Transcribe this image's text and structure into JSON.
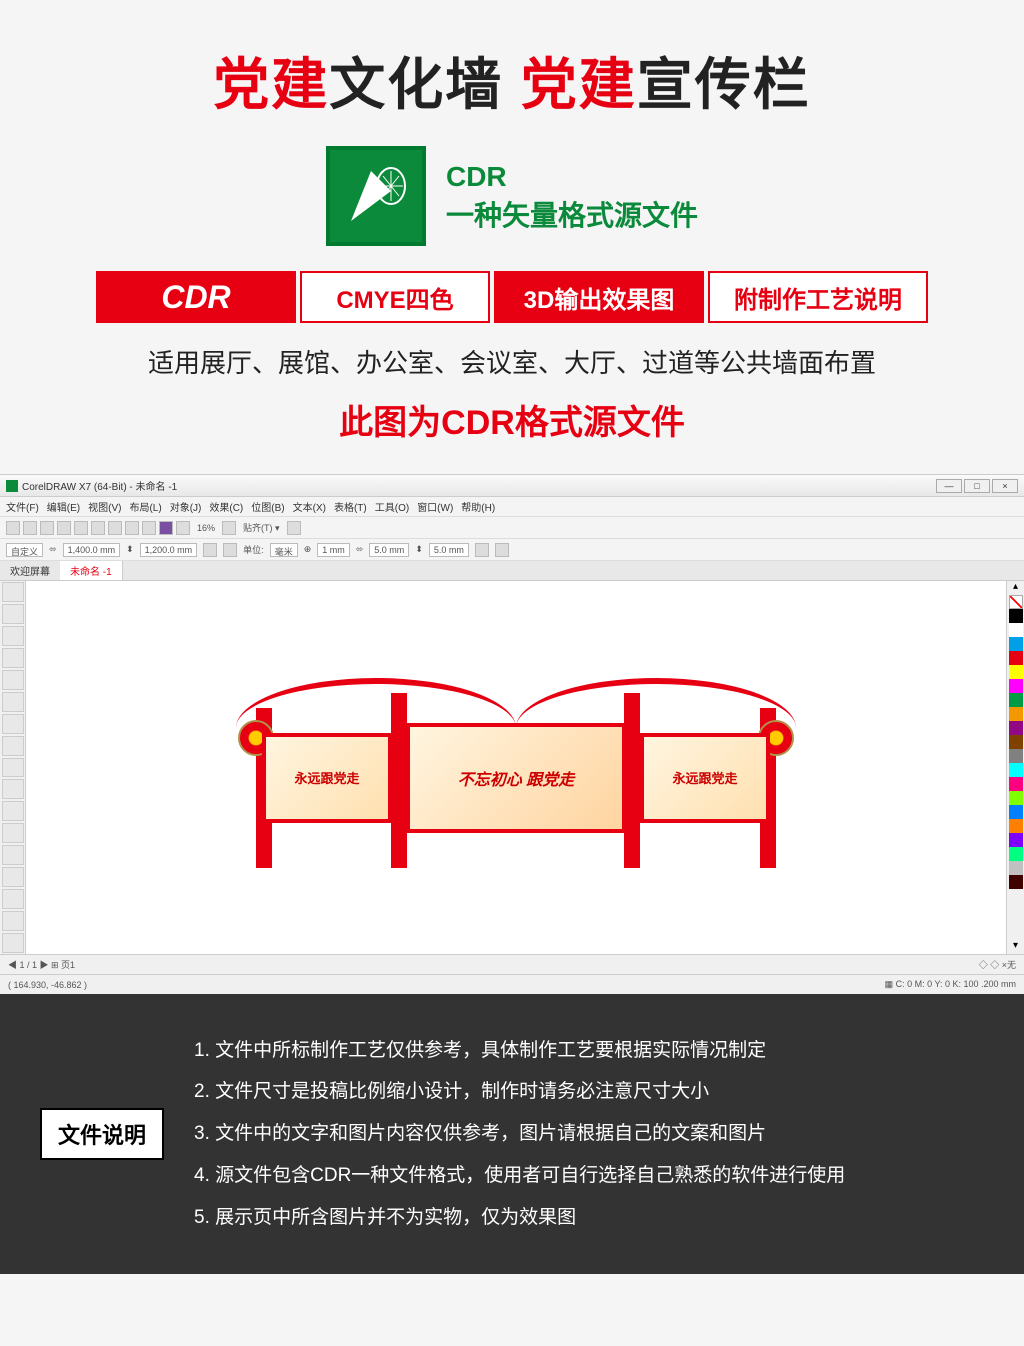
{
  "header": {
    "title_parts": [
      {
        "text": "党建",
        "red": true
      },
      {
        "text": "文化墙  ",
        "red": false
      },
      {
        "text": "党建",
        "red": true
      },
      {
        "text": "宣传栏",
        "red": false
      }
    ],
    "cdr_label": "CDR",
    "cdr_desc": "一种矢量格式源文件",
    "badges": {
      "b1": "CDR",
      "b2": "CMYE四色",
      "b3": "3D输出效果图",
      "b4": "附制作工艺说明"
    },
    "usage": "适用展厅、展馆、办公室、会议室、大厅、过道等公共墙面布置",
    "source_note": "此图为CDR格式源文件"
  },
  "app": {
    "title": "CorelDRAW X7 (64-Bit) - 未命名 -1",
    "menu": [
      "文件(F)",
      "编辑(E)",
      "视图(V)",
      "布局(L)",
      "对象(J)",
      "效果(C)",
      "位图(B)",
      "文本(X)",
      "表格(T)",
      "工具(O)",
      "窗口(W)",
      "帮助(H)"
    ],
    "zoom": "16%",
    "dims_w": "1,400.0 mm",
    "dims_h": "1,200.0 mm",
    "unit": "毫米",
    "nudge1": "5.0 mm",
    "nudge2": "5.0 mm",
    "nudge_small": "1 mm",
    "tab1": "欢迎屏幕",
    "tab2": "未命名 -1",
    "proplabel": "自定义",
    "coords": "( 164.930, -46.862 )",
    "colormode": "C: 0 M: 0 Y: 0 K: 100  .200 mm",
    "none": "无"
  },
  "design": {
    "center_text": "不忘初心 跟党走",
    "side_text": "永远跟党走",
    "colors": {
      "primary_red": "#e60012",
      "gold": "#b0924a"
    }
  },
  "palette": [
    "#000000",
    "#ffffff",
    "#00a0e9",
    "#e60012",
    "#ffff00",
    "#ff00ff",
    "#009944",
    "#f39800",
    "#920783",
    "#804000",
    "#808080",
    "#00ffff",
    "#ff0080",
    "#80ff00",
    "#0080ff",
    "#ff8000",
    "#8000ff",
    "#00ff80",
    "#c0c0c0",
    "#400000"
  ],
  "footer": {
    "label": "文件说明",
    "items": [
      "1. 文件中所标制作工艺仅供参考，具体制作工艺要根据实际情况制定",
      "2. 文件尺寸是投稿比例缩小设计，制作时请务必注意尺寸大小",
      "3. 文件中的文字和图片内容仅供参考，图片请根据自己的文案和图片",
      "4. 源文件包含CDR一种文件格式，使用者可自行选择自己熟悉的软件进行使用",
      "5. 展示页中所含图片并不为实物，仅为效果图"
    ]
  }
}
